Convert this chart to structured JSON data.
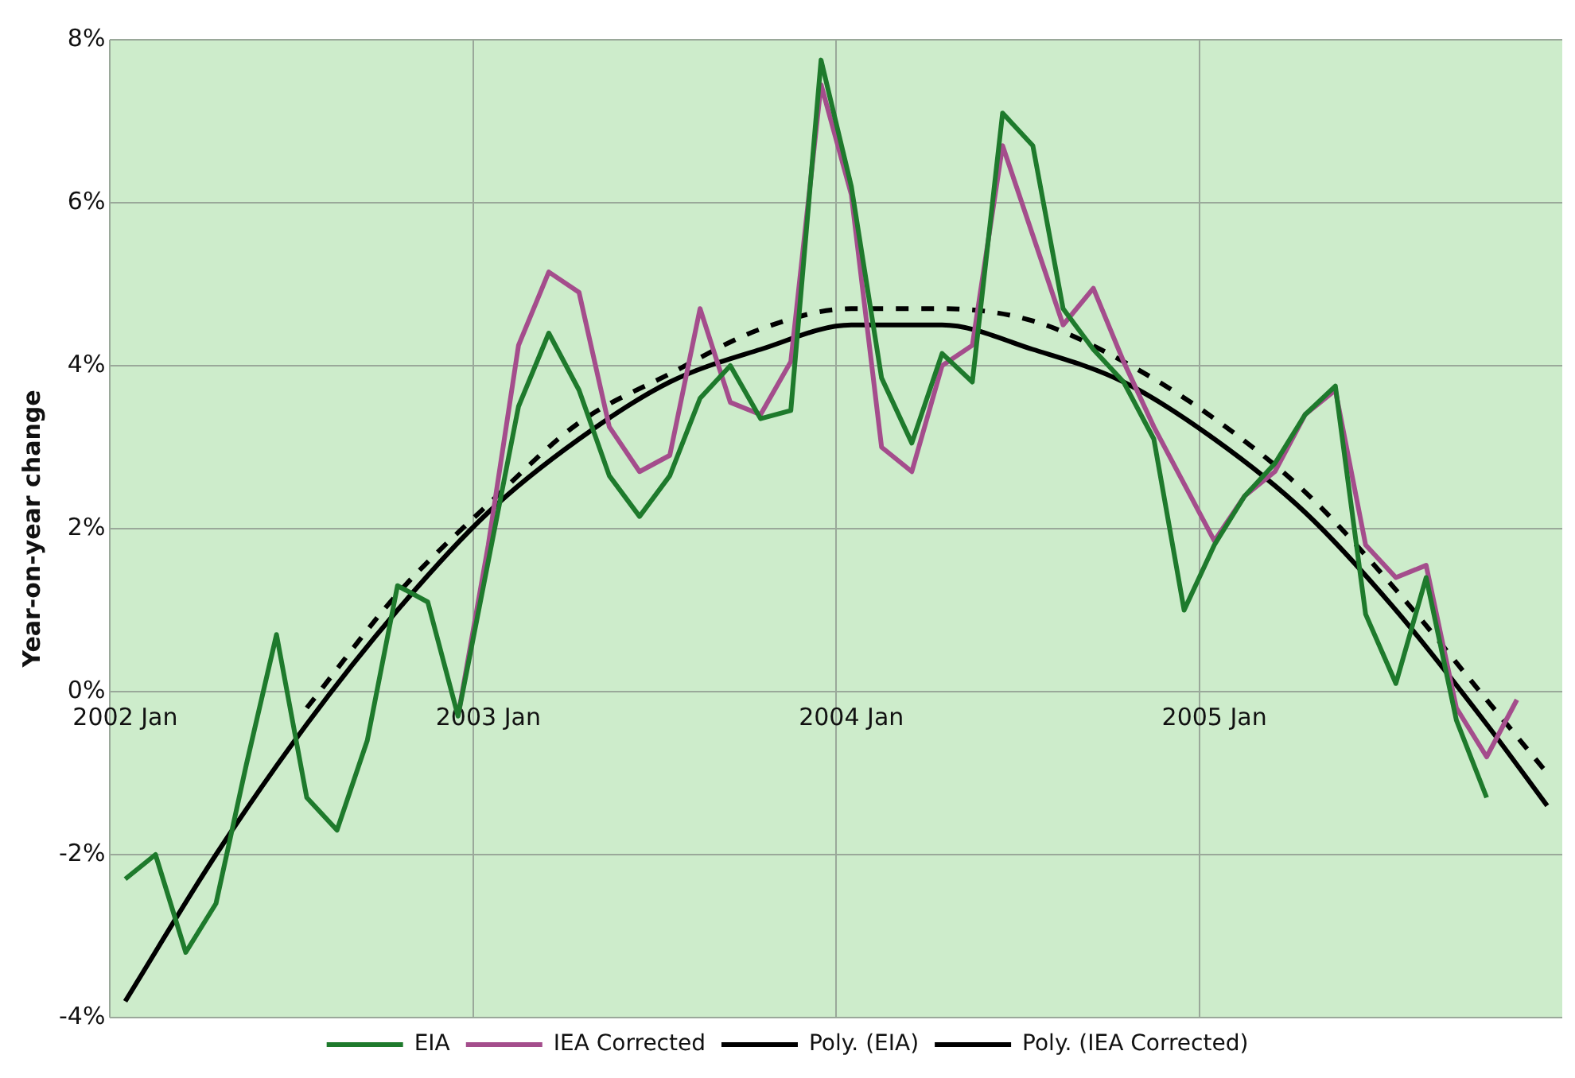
{
  "chart_data": {
    "type": "line",
    "ylabel": "Year-on-year change",
    "categories": [
      "2002 Jan",
      null,
      null,
      null,
      null,
      null,
      null,
      null,
      null,
      null,
      null,
      null,
      "2003 Jan",
      null,
      null,
      null,
      null,
      null,
      null,
      null,
      null,
      null,
      null,
      null,
      "2004 Jan",
      null,
      null,
      null,
      null,
      null,
      null,
      null,
      null,
      null,
      null,
      null,
      "2005 Jan",
      null,
      null,
      null,
      null,
      null,
      null,
      null,
      null,
      null,
      null,
      null
    ],
    "series": [
      {
        "name": "EIA",
        "color": "#1e7a2c",
        "line_style": "solid",
        "values": [
          -2.3,
          -2.0,
          -3.2,
          -2.6,
          -0.9,
          0.7,
          -1.3,
          -1.7,
          -0.6,
          1.3,
          1.1,
          -0.3,
          1.6,
          3.5,
          4.4,
          3.7,
          2.65,
          2.15,
          2.65,
          3.6,
          4.0,
          3.35,
          3.45,
          7.75,
          6.2,
          3.85,
          3.05,
          4.15,
          3.8,
          7.1,
          6.7,
          4.7,
          4.2,
          3.8,
          3.1,
          1.0,
          1.8,
          2.4,
          2.8,
          3.4,
          3.75,
          0.95,
          0.1,
          1.4,
          -0.35,
          -1.3,
          null,
          null
        ]
      },
      {
        "name": "IEA Corrected",
        "color": "#a44d8c",
        "line_style": "solid",
        "values": [
          null,
          null,
          null,
          null,
          null,
          null,
          null,
          null,
          null,
          null,
          null,
          -0.3,
          1.8,
          4.25,
          5.15,
          4.9,
          3.25,
          2.7,
          2.9,
          4.7,
          3.55,
          3.4,
          4.05,
          7.45,
          6.1,
          3.0,
          2.7,
          4.0,
          4.25,
          6.7,
          5.6,
          4.5,
          4.95,
          4.05,
          3.25,
          2.55,
          1.85,
          2.4,
          2.7,
          3.4,
          3.7,
          1.8,
          1.4,
          1.55,
          -0.2,
          -0.8,
          -0.1,
          null
        ]
      },
      {
        "name": "Poly. (EIA)",
        "type": "line",
        "color": "#000000",
        "line_style": "solid",
        "values": [
          -3.8,
          null,
          null,
          -2.0,
          null,
          null,
          -0.4,
          null,
          null,
          1.0,
          null,
          null,
          2.2,
          null,
          null,
          3.1,
          null,
          null,
          3.8,
          null,
          null,
          4.2,
          null,
          null,
          4.5,
          null,
          null,
          4.5,
          null,
          null,
          4.2,
          null,
          null,
          3.8,
          null,
          null,
          3.1,
          null,
          null,
          2.2,
          null,
          null,
          1.0,
          null,
          null,
          -0.4,
          null,
          -1.4
        ]
      },
      {
        "name": "Poly. (IEA Corrected)",
        "type": "line",
        "color": "#000000",
        "line_style": "dashed",
        "values": [
          null,
          null,
          null,
          null,
          null,
          null,
          -0.2,
          null,
          null,
          1.2,
          null,
          null,
          2.3,
          null,
          null,
          3.3,
          null,
          null,
          3.9,
          null,
          null,
          4.45,
          null,
          null,
          4.7,
          null,
          null,
          4.7,
          null,
          null,
          4.55,
          null,
          null,
          4.05,
          null,
          null,
          3.35,
          null,
          null,
          2.45,
          null,
          null,
          1.25,
          null,
          null,
          -0.1,
          null,
          -1.0
        ]
      }
    ],
    "ylim": [
      -4,
      8
    ],
    "yticks": [
      {
        "value": -4,
        "label": "-4%"
      },
      {
        "value": -2,
        "label": "-2%"
      },
      {
        "value": 0,
        "label": "0%"
      },
      {
        "value": 2,
        "label": "2%"
      },
      {
        "value": 4,
        "label": "4%"
      },
      {
        "value": 6,
        "label": "6%"
      },
      {
        "value": 8,
        "label": "8%"
      }
    ],
    "grid": true,
    "legend": "bottom",
    "marker": "none"
  }
}
